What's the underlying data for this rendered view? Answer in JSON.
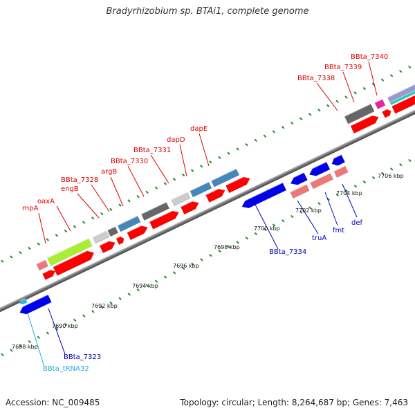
{
  "title": "Bradyrhizobium sp. BTAi1, complete genome",
  "footer": {
    "accession": "Accession: NC_009485",
    "summary": "Topology: circular; Length: 8,264,687 bp; Genes: 7,463"
  },
  "colors": {
    "red_label": "#dd0000",
    "blue_label": "#0000bb",
    "cyan_label": "#22aadd",
    "backbone": "#7a7a7a",
    "ticks": "#228b22"
  },
  "scale_labels": [
    "7688 kbp",
    "7690 kbp",
    "7692 kbp",
    "7694 kbp",
    "7696 kbp",
    "7698 kbp",
    "7700 kbp",
    "7702 kbp",
    "7704 kbp",
    "7706 kbp"
  ],
  "gene_labels_top": [
    "rnpA",
    "oaxA",
    "engB",
    "BBta_7328",
    "argB",
    "BBta_7330",
    "BBta_7331",
    "dapD",
    "dapE",
    "BBta_7338",
    "BBta_7339",
    "BBta_7340"
  ],
  "gene_labels_bottom": [
    "BBta_tRNA32",
    "BBta_7323",
    "BBta_7334",
    "truA",
    "fmt",
    "def"
  ]
}
